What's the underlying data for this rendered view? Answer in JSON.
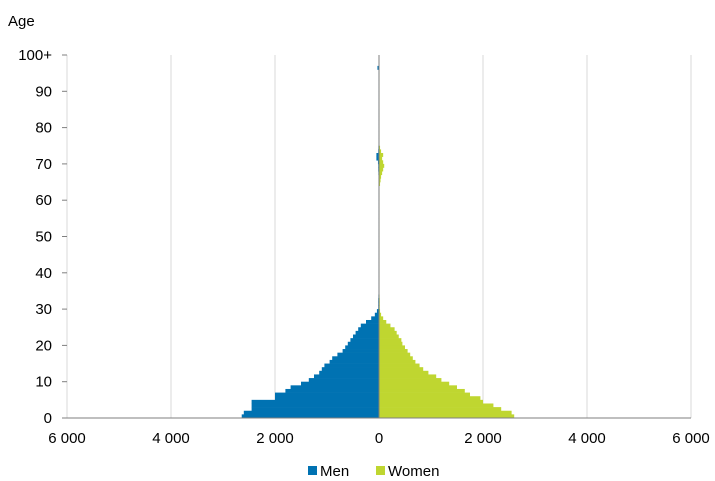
{
  "chart_data": {
    "type": "bar",
    "orientation": "horizontal",
    "subtype": "population-pyramid",
    "ylabel": "Age",
    "x_ticks": [
      -6000,
      -4000,
      -2000,
      0,
      2000,
      4000,
      6000
    ],
    "x_tick_labels": [
      "6 000",
      "4 000",
      "2 000",
      "0",
      "2 000",
      "4 000",
      "6 000"
    ],
    "xlim": [
      -6000,
      6000
    ],
    "y_ticks": [
      0,
      10,
      20,
      30,
      40,
      50,
      60,
      70,
      80,
      90,
      100
    ],
    "y_tick_labels": [
      "0",
      "10",
      "20",
      "30",
      "40",
      "50",
      "60",
      "70",
      "80",
      "90",
      "100+"
    ],
    "ylim": [
      0,
      100
    ],
    "grid": "vertical",
    "legend": "bottom",
    "ages": [
      0,
      1,
      2,
      3,
      4,
      5,
      6,
      7,
      8,
      9,
      10,
      11,
      12,
      13,
      14,
      15,
      16,
      17,
      18,
      19,
      20,
      21,
      22,
      23,
      24,
      25,
      26,
      27,
      28,
      29,
      30,
      31,
      32,
      33,
      34,
      35,
      36,
      37,
      38,
      39,
      40,
      41,
      42,
      43,
      44,
      45,
      46,
      47,
      48,
      49,
      50,
      51,
      52,
      53,
      54,
      55,
      56,
      57,
      58,
      59,
      60,
      61,
      62,
      63,
      64,
      65,
      66,
      67,
      68,
      69,
      70,
      71,
      72,
      73,
      74,
      75,
      76,
      77,
      78,
      79,
      80,
      81,
      82,
      83,
      84,
      85,
      86,
      87,
      88,
      89,
      90,
      91,
      92,
      93,
      94,
      95,
      96,
      97,
      98,
      99,
      100
    ],
    "series": [
      {
        "name": "Men",
        "color": "#0072B2",
        "values": [
          2640,
          2600,
          2450,
          2450,
          2450,
          2000,
          2000,
          1800,
          1700,
          1500,
          1350,
          1250,
          1150,
          1100,
          1050,
          950,
          900,
          800,
          700,
          650,
          600,
          550,
          500,
          450,
          400,
          350,
          250,
          150,
          80,
          40,
          15,
          15,
          15,
          12,
          10,
          10,
          10,
          10,
          10,
          10,
          10,
          10,
          10,
          10,
          10,
          10,
          10,
          10,
          10,
          10,
          10,
          10,
          10,
          10,
          10,
          10,
          10,
          10,
          10,
          10,
          10,
          10,
          10,
          10,
          10,
          10,
          10,
          12,
          15,
          15,
          20,
          50,
          50,
          15,
          12,
          10,
          10,
          10,
          10,
          10,
          10,
          10,
          10,
          10,
          10,
          10,
          10,
          10,
          10,
          10,
          10,
          10,
          10,
          10,
          10,
          10,
          30,
          5,
          5,
          5,
          0
        ]
      },
      {
        "name": "Women",
        "color": "#BFD630",
        "values": [
          2600,
          2550,
          2350,
          2200,
          2000,
          1950,
          1750,
          1650,
          1500,
          1350,
          1200,
          1100,
          950,
          850,
          780,
          700,
          650,
          600,
          550,
          500,
          450,
          430,
          380,
          340,
          300,
          220,
          140,
          80,
          40,
          20,
          15,
          15,
          15,
          12,
          10,
          10,
          10,
          10,
          10,
          10,
          10,
          10,
          10,
          10,
          10,
          10,
          10,
          10,
          10,
          10,
          10,
          10,
          10,
          10,
          10,
          10,
          10,
          10,
          10,
          10,
          10,
          10,
          10,
          10,
          20,
          30,
          40,
          60,
          80,
          100,
          80,
          60,
          80,
          40,
          20,
          10,
          10,
          10,
          10,
          10,
          10,
          10,
          10,
          10,
          10,
          10,
          10,
          10,
          10,
          10,
          10,
          10,
          10,
          10,
          10,
          10,
          5,
          5,
          5,
          5,
          0
        ]
      }
    ]
  }
}
